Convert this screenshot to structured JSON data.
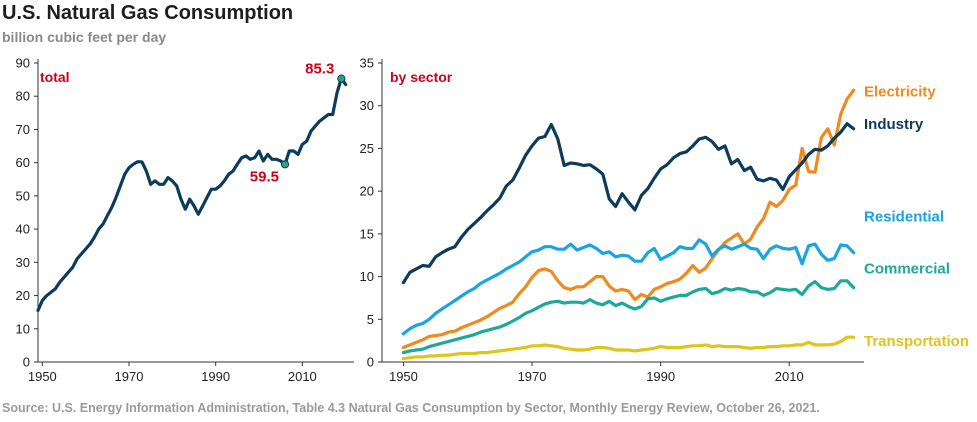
{
  "header": {
    "title": "U.S. Natural Gas Consumption",
    "subtitle": "billion cubic feet per day"
  },
  "source": "Source: U.S. Energy Information Administration, Table 4.3 Natural Gas Consumption by Sector, Monthly Energy Review, October 26, 2021.",
  "colors": {
    "total": "#0d3b5c",
    "electricity": "#f0891e",
    "industry": "#0d3b5c",
    "residential": "#1aa4e0",
    "commercial": "#1ca99a",
    "transportation": "#dfc41a",
    "annotation": "#d0021b",
    "marker": "#2ea27c"
  },
  "chart_data": [
    {
      "type": "line",
      "panel_label": "total",
      "xlabel": "",
      "ylabel": "billion cubic feet per day",
      "xlim": [
        1949,
        2021
      ],
      "ylim": [
        0,
        90
      ],
      "x_ticks": [
        "1950",
        "1970",
        "1990",
        "2010"
      ],
      "x_tick_values": [
        1950,
        1970,
        1990,
        2010
      ],
      "y_ticks": [
        "0",
        "10",
        "20",
        "30",
        "40",
        "50",
        "60",
        "70",
        "80",
        "90"
      ],
      "y_tick_values": [
        0,
        10,
        20,
        30,
        40,
        50,
        60,
        70,
        80,
        90
      ],
      "annotations": [
        {
          "text": "85.3",
          "x": 2019,
          "y": 85.3
        },
        {
          "text": "59.5",
          "x": 2006,
          "y": 59.5
        }
      ],
      "series": [
        {
          "name": "Total",
          "x": [
            1949,
            1950,
            1951,
            1952,
            1953,
            1954,
            1955,
            1956,
            1957,
            1958,
            1959,
            1960,
            1961,
            1962,
            1963,
            1964,
            1965,
            1966,
            1967,
            1968,
            1969,
            1970,
            1971,
            1972,
            1973,
            1974,
            1975,
            1976,
            1977,
            1978,
            1979,
            1980,
            1981,
            1982,
            1983,
            1984,
            1985,
            1986,
            1987,
            1988,
            1989,
            1990,
            1991,
            1992,
            1993,
            1994,
            1995,
            1996,
            1997,
            1998,
            1999,
            2000,
            2001,
            2002,
            2003,
            2004,
            2005,
            2006,
            2007,
            2008,
            2009,
            2010,
            2011,
            2012,
            2013,
            2014,
            2015,
            2016,
            2017,
            2018,
            2019,
            2020
          ],
          "values": [
            15.5,
            18.5,
            20,
            21,
            22,
            24,
            25.5,
            27,
            28.5,
            31,
            32.5,
            34,
            35.5,
            37.5,
            40,
            41.5,
            44,
            46.5,
            49.5,
            53,
            56.5,
            58.5,
            59.5,
            60.3,
            60.2,
            57.5,
            53.5,
            54.5,
            53.5,
            53.5,
            55.5,
            54.5,
            53,
            49,
            46,
            49,
            47,
            44.5,
            47,
            49.5,
            52,
            52,
            53,
            54.5,
            56.5,
            57.5,
            59.5,
            61.5,
            62,
            61,
            61.5,
            63.5,
            60.5,
            62.5,
            61,
            61,
            60.5,
            59.5,
            63.5,
            63.5,
            62.5,
            65.5,
            66.5,
            69.5,
            71,
            72.5,
            73.5,
            74.5,
            74.5,
            81,
            85.3,
            83.5
          ]
        }
      ]
    },
    {
      "type": "line",
      "panel_label": "by sector",
      "xlabel": "",
      "ylabel": "billion cubic feet per day",
      "xlim": [
        1949,
        2021
      ],
      "ylim": [
        0,
        35
      ],
      "x_ticks": [
        "1950",
        "1970",
        "1990",
        "2010"
      ],
      "x_tick_values": [
        1950,
        1970,
        1990,
        2010
      ],
      "y_ticks": [
        "0",
        "5",
        "10",
        "15",
        "20",
        "25",
        "30",
        "35"
      ],
      "y_tick_values": [
        0,
        5,
        10,
        15,
        20,
        25,
        30,
        35
      ],
      "x": [
        1950,
        1951,
        1952,
        1953,
        1954,
        1955,
        1956,
        1957,
        1958,
        1959,
        1960,
        1961,
        1962,
        1963,
        1964,
        1965,
        1966,
        1967,
        1968,
        1969,
        1970,
        1971,
        1972,
        1973,
        1974,
        1975,
        1976,
        1977,
        1978,
        1979,
        1980,
        1981,
        1982,
        1983,
        1984,
        1985,
        1986,
        1987,
        1988,
        1989,
        1990,
        1991,
        1992,
        1993,
        1994,
        1995,
        1996,
        1997,
        1998,
        1999,
        2000,
        2001,
        2002,
        2003,
        2004,
        2005,
        2006,
        2007,
        2008,
        2009,
        2010,
        2011,
        2012,
        2013,
        2014,
        2015,
        2016,
        2017,
        2018,
        2019,
        2020
      ],
      "series": [
        {
          "name": "Electricity",
          "color_key": "electricity",
          "values": [
            1.7,
            2.0,
            2.3,
            2.6,
            3.0,
            3.1,
            3.2,
            3.5,
            3.6,
            4.0,
            4.3,
            4.6,
            4.9,
            5.3,
            5.8,
            6.3,
            6.6,
            7.0,
            8.0,
            8.8,
            9.9,
            10.7,
            10.9,
            10.6,
            9.5,
            8.7,
            8.5,
            8.8,
            8.8,
            9.4,
            10.0,
            10.0,
            8.9,
            8.3,
            8.5,
            8.3,
            7.3,
            7.9,
            7.6,
            8.5,
            8.8,
            9.2,
            9.4,
            9.7,
            10.4,
            11.3,
            10.5,
            11.0,
            12.1,
            13.1,
            14.0,
            14.5,
            15.0,
            13.8,
            14.4,
            15.8,
            16.8,
            18.7,
            18.2,
            18.9,
            20.2,
            20.7,
            25.0,
            22.3,
            22.2,
            26.3,
            27.3,
            25.4,
            29.0,
            30.8,
            31.8
          ]
        },
        {
          "name": "Industry",
          "color_key": "industry",
          "values": [
            9.3,
            10.5,
            10.9,
            11.3,
            11.2,
            12.3,
            12.8,
            13.2,
            13.5,
            14.6,
            15.5,
            16.2,
            16.9,
            17.7,
            18.4,
            19.2,
            20.6,
            21.3,
            22.7,
            24.2,
            25.3,
            26.2,
            26.4,
            27.8,
            26.1,
            23.0,
            23.3,
            23.2,
            23.0,
            23.1,
            22.6,
            22.0,
            19.1,
            18.2,
            19.7,
            18.7,
            17.8,
            19.5,
            20.3,
            21.5,
            22.6,
            23.1,
            23.9,
            24.4,
            24.6,
            25.3,
            26.1,
            26.3,
            25.8,
            24.9,
            25.3,
            23.2,
            23.7,
            22.4,
            22.8,
            21.4,
            21.2,
            21.5,
            21.3,
            20.2,
            21.7,
            22.5,
            23.3,
            24.3,
            24.9,
            24.8,
            25.3,
            26.2,
            26.9,
            27.9,
            27.3
          ]
        },
        {
          "name": "Residential",
          "color_key": "residential",
          "values": [
            3.3,
            3.9,
            4.3,
            4.5,
            5.0,
            5.7,
            6.2,
            6.7,
            7.2,
            7.7,
            8.2,
            8.6,
            9.2,
            9.6,
            10.0,
            10.4,
            10.9,
            11.3,
            11.7,
            12.3,
            12.9,
            13.1,
            13.5,
            13.5,
            13.2,
            13.2,
            13.8,
            13.1,
            13.4,
            13.7,
            13.3,
            12.7,
            12.9,
            12.3,
            12.5,
            12.4,
            11.8,
            11.8,
            12.8,
            13.3,
            12.0,
            12.4,
            12.8,
            13.5,
            13.3,
            13.3,
            14.3,
            13.8,
            12.4,
            13.2,
            13.6,
            13.2,
            13.5,
            13.8,
            13.3,
            13.2,
            12.1,
            13.2,
            13.6,
            13.3,
            13.2,
            13.4,
            11.5,
            13.6,
            13.8,
            12.6,
            11.9,
            12.1,
            13.7,
            13.6,
            12.8
          ]
        },
        {
          "name": "Commercial",
          "color_key": "commercial",
          "values": [
            1.1,
            1.3,
            1.4,
            1.5,
            1.8,
            2.0,
            2.2,
            2.4,
            2.6,
            2.8,
            3.0,
            3.2,
            3.5,
            3.7,
            3.9,
            4.1,
            4.4,
            4.8,
            5.2,
            5.7,
            6.0,
            6.4,
            6.8,
            7.0,
            7.1,
            6.9,
            7.0,
            7.0,
            6.9,
            7.3,
            6.9,
            6.7,
            7.1,
            6.6,
            6.9,
            6.5,
            6.2,
            6.5,
            7.4,
            7.5,
            7.1,
            7.4,
            7.6,
            7.8,
            7.8,
            8.2,
            8.5,
            8.6,
            8.0,
            8.2,
            8.6,
            8.4,
            8.6,
            8.5,
            8.2,
            8.2,
            7.8,
            8.1,
            8.6,
            8.5,
            8.4,
            8.5,
            7.9,
            8.9,
            9.4,
            8.7,
            8.5,
            8.6,
            9.5,
            9.5,
            8.7
          ]
        },
        {
          "name": "Transportation",
          "color_key": "transportation",
          "values": [
            0.4,
            0.5,
            0.6,
            0.6,
            0.7,
            0.7,
            0.8,
            0.8,
            0.9,
            1.0,
            1.0,
            1.0,
            1.1,
            1.1,
            1.2,
            1.3,
            1.4,
            1.5,
            1.6,
            1.7,
            1.9,
            1.9,
            2.0,
            1.9,
            1.8,
            1.6,
            1.5,
            1.4,
            1.4,
            1.5,
            1.7,
            1.7,
            1.6,
            1.4,
            1.4,
            1.4,
            1.3,
            1.4,
            1.5,
            1.6,
            1.8,
            1.7,
            1.7,
            1.7,
            1.8,
            1.9,
            1.9,
            2.0,
            1.8,
            1.9,
            1.8,
            1.8,
            1.8,
            1.7,
            1.6,
            1.7,
            1.7,
            1.8,
            1.8,
            1.9,
            1.9,
            2.0,
            2.0,
            2.3,
            2.0,
            2.0,
            2.0,
            2.1,
            2.4,
            2.9,
            2.9
          ]
        }
      ]
    }
  ]
}
